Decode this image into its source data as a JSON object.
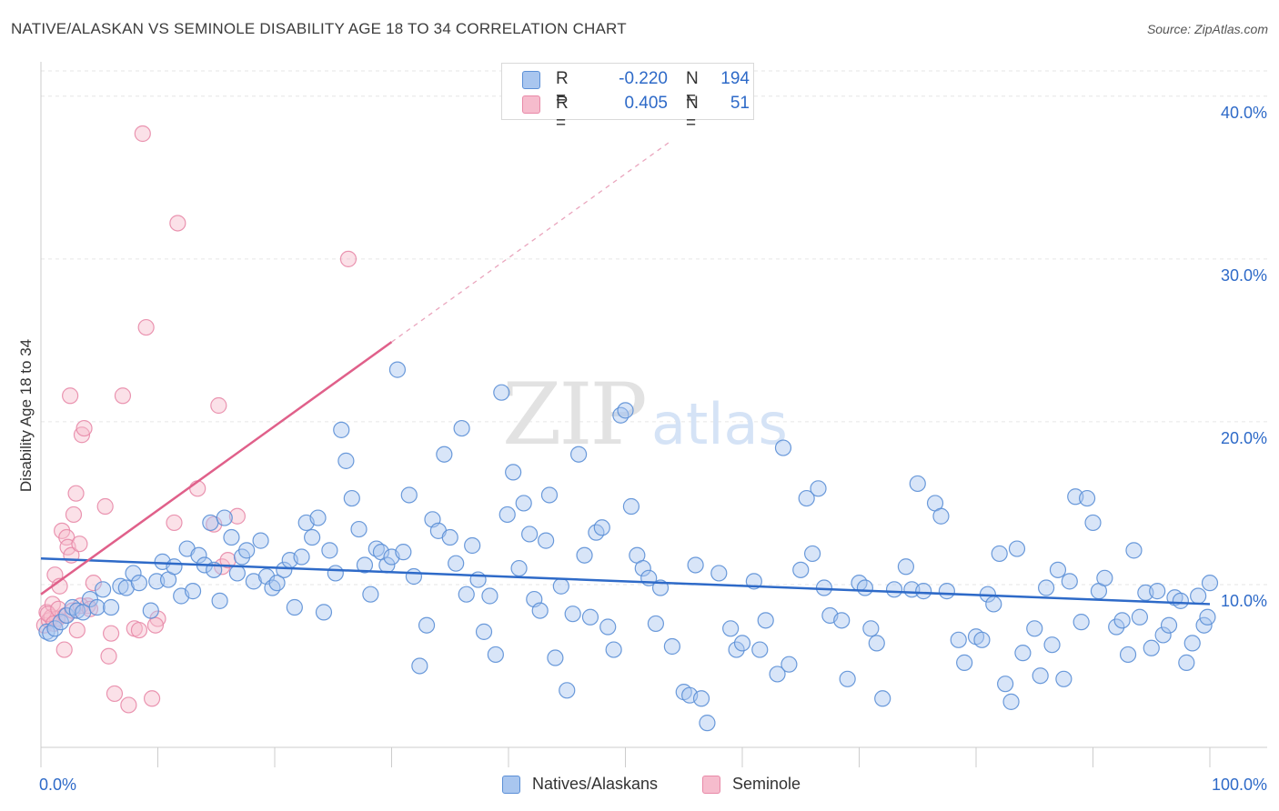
{
  "title": "NATIVE/ALASKAN VS SEMINOLE DISABILITY AGE 18 TO 34 CORRELATION CHART",
  "source": "Source: ZipAtlas.com",
  "watermark": {
    "zip": "ZIP",
    "atlas": "atlas"
  },
  "colors": {
    "blue_fill": "#a9c6ef",
    "blue_stroke": "#5b8fd6",
    "blue_line": "#2e6ac8",
    "pink_fill": "#f6bccd",
    "pink_stroke": "#e889a8",
    "pink_line": "#e0608a",
    "tick_text": "#2e6ac8",
    "grid": "#e6e6e6"
  },
  "legend": {
    "rows": [
      {
        "r_label": "R =",
        "r_value": "-0.220",
        "n_label": "N =",
        "n_value": "194",
        "color": "#a9c6ef",
        "border": "#5b8fd6"
      },
      {
        "r_label": "R =",
        "r_value": "0.405",
        "n_label": "N =",
        "n_value": "51",
        "color": "#f6bccd",
        "border": "#e889a8"
      }
    ]
  },
  "bottom_legend": [
    {
      "label": "Natives/Alaskans",
      "color": "#a9c6ef",
      "border": "#5b8fd6"
    },
    {
      "label": "Seminole",
      "color": "#f6bccd",
      "border": "#e889a8"
    }
  ],
  "chart_data": {
    "type": "scatter",
    "title": "NATIVE/ALASKAN VS SEMINOLE DISABILITY AGE 18 TO 34 CORRELATION CHART",
    "xlabel": "",
    "ylabel": "Disability Age 18 to 34",
    "xlim": [
      0,
      100
    ],
    "ylim": [
      0,
      42
    ],
    "x_tick_labels": [
      "0.0%",
      "100.0%"
    ],
    "y_ticks": [
      10,
      20,
      30,
      40
    ],
    "y_tick_labels": [
      "10.0%",
      "20.0%",
      "30.0%",
      "40.0%"
    ],
    "grid": "horizontal dashed",
    "legend_position": "top-center",
    "series": [
      {
        "name": "Natives/Alaskans",
        "r": -0.22,
        "n": 194,
        "trend": {
          "x": [
            0,
            100
          ],
          "y": [
            11.6,
            8.8
          ]
        },
        "points": [
          [
            0.5,
            7.1
          ],
          [
            0.8,
            7.0
          ],
          [
            1.2,
            7.3
          ],
          [
            1.7,
            7.7
          ],
          [
            2.2,
            8.1
          ],
          [
            2.7,
            8.6
          ],
          [
            3.1,
            8.4
          ],
          [
            3.6,
            8.3
          ],
          [
            4.2,
            9.1
          ],
          [
            4.8,
            8.6
          ],
          [
            5.3,
            9.7
          ],
          [
            6.0,
            8.6
          ],
          [
            6.8,
            9.9
          ],
          [
            7.3,
            9.8
          ],
          [
            7.9,
            10.7
          ],
          [
            8.4,
            10.1
          ],
          [
            9.4,
            8.4
          ],
          [
            9.9,
            10.2
          ],
          [
            10.4,
            11.4
          ],
          [
            10.9,
            10.3
          ],
          [
            11.4,
            11.1
          ],
          [
            12.0,
            9.3
          ],
          [
            12.5,
            12.2
          ],
          [
            13.0,
            9.6
          ],
          [
            13.5,
            11.8
          ],
          [
            14.0,
            11.2
          ],
          [
            14.5,
            13.8
          ],
          [
            14.8,
            10.9
          ],
          [
            15.3,
            9.0
          ],
          [
            15.7,
            14.1
          ],
          [
            16.3,
            12.9
          ],
          [
            16.8,
            10.7
          ],
          [
            17.2,
            11.7
          ],
          [
            17.6,
            12.1
          ],
          [
            18.2,
            10.2
          ],
          [
            18.8,
            12.7
          ],
          [
            19.3,
            10.5
          ],
          [
            19.8,
            9.8
          ],
          [
            20.2,
            10.1
          ],
          [
            20.8,
            10.9
          ],
          [
            21.3,
            11.5
          ],
          [
            21.7,
            8.6
          ],
          [
            22.3,
            11.7
          ],
          [
            22.7,
            13.8
          ],
          [
            23.2,
            12.9
          ],
          [
            23.7,
            14.1
          ],
          [
            24.2,
            8.3
          ],
          [
            24.7,
            12.1
          ],
          [
            25.2,
            10.7
          ],
          [
            25.7,
            19.5
          ],
          [
            26.1,
            17.6
          ],
          [
            26.6,
            15.3
          ],
          [
            27.2,
            13.4
          ],
          [
            27.7,
            11.2
          ],
          [
            28.2,
            9.4
          ],
          [
            28.7,
            12.2
          ],
          [
            29.1,
            12.0
          ],
          [
            29.6,
            11.2
          ],
          [
            30.0,
            11.7
          ],
          [
            30.5,
            23.2
          ],
          [
            31.0,
            12.0
          ],
          [
            31.5,
            15.5
          ],
          [
            31.9,
            10.5
          ],
          [
            32.4,
            5.0
          ],
          [
            33.0,
            7.5
          ],
          [
            33.5,
            14.0
          ],
          [
            34.0,
            13.3
          ],
          [
            34.5,
            18.0
          ],
          [
            35.0,
            12.9
          ],
          [
            35.5,
            11.3
          ],
          [
            36.0,
            19.6
          ],
          [
            36.4,
            9.4
          ],
          [
            36.9,
            12.4
          ],
          [
            37.4,
            10.3
          ],
          [
            37.9,
            7.1
          ],
          [
            38.4,
            9.3
          ],
          [
            38.9,
            5.7
          ],
          [
            39.4,
            21.8
          ],
          [
            39.9,
            14.3
          ],
          [
            40.4,
            16.9
          ],
          [
            40.9,
            11.0
          ],
          [
            41.3,
            15.0
          ],
          [
            41.8,
            13.1
          ],
          [
            42.2,
            9.1
          ],
          [
            42.7,
            8.4
          ],
          [
            43.2,
            12.7
          ],
          [
            43.5,
            15.5
          ],
          [
            44.0,
            5.5
          ],
          [
            44.5,
            9.9
          ],
          [
            45.0,
            3.5
          ],
          [
            45.5,
            8.2
          ],
          [
            46.0,
            18.0
          ],
          [
            46.5,
            11.8
          ],
          [
            47.0,
            8.0
          ],
          [
            47.5,
            13.2
          ],
          [
            48.0,
            13.5
          ],
          [
            48.5,
            7.4
          ],
          [
            49.0,
            6.0
          ],
          [
            49.6,
            20.4
          ],
          [
            50.0,
            20.7
          ],
          [
            50.5,
            14.8
          ],
          [
            51.0,
            11.8
          ],
          [
            51.5,
            11.0
          ],
          [
            52.0,
            10.4
          ],
          [
            52.6,
            7.6
          ],
          [
            53.0,
            9.8
          ],
          [
            54.0,
            6.2
          ],
          [
            55.0,
            3.4
          ],
          [
            55.5,
            3.2
          ],
          [
            56.0,
            11.2
          ],
          [
            56.5,
            3.0
          ],
          [
            57.0,
            1.5
          ],
          [
            58.0,
            10.7
          ],
          [
            59.0,
            7.3
          ],
          [
            59.5,
            6.0
          ],
          [
            60.0,
            6.4
          ],
          [
            61.0,
            10.2
          ],
          [
            61.5,
            6.0
          ],
          [
            62.0,
            7.8
          ],
          [
            63.0,
            4.5
          ],
          [
            63.5,
            18.4
          ],
          [
            64.0,
            5.1
          ],
          [
            65.0,
            10.9
          ],
          [
            65.5,
            15.3
          ],
          [
            66.0,
            11.9
          ],
          [
            66.5,
            15.9
          ],
          [
            67.0,
            9.8
          ],
          [
            67.5,
            8.1
          ],
          [
            68.5,
            7.8
          ],
          [
            69.0,
            4.2
          ],
          [
            70.0,
            10.1
          ],
          [
            70.5,
            9.8
          ],
          [
            71.0,
            7.3
          ],
          [
            71.5,
            6.4
          ],
          [
            72.0,
            3.0
          ],
          [
            73.0,
            9.7
          ],
          [
            74.0,
            11.1
          ],
          [
            74.5,
            9.7
          ],
          [
            75.0,
            16.2
          ],
          [
            75.5,
            9.6
          ],
          [
            76.5,
            15.0
          ],
          [
            77.0,
            14.2
          ],
          [
            77.5,
            9.6
          ],
          [
            78.5,
            6.6
          ],
          [
            79.0,
            5.2
          ],
          [
            80.0,
            6.8
          ],
          [
            80.5,
            6.6
          ],
          [
            81.0,
            9.4
          ],
          [
            81.5,
            8.8
          ],
          [
            82.0,
            11.9
          ],
          [
            82.5,
            3.9
          ],
          [
            83.0,
            2.8
          ],
          [
            83.5,
            12.2
          ],
          [
            84.0,
            5.8
          ],
          [
            85.0,
            7.3
          ],
          [
            85.5,
            4.4
          ],
          [
            86.0,
            9.8
          ],
          [
            86.5,
            6.3
          ],
          [
            87.0,
            10.9
          ],
          [
            87.5,
            4.2
          ],
          [
            88.0,
            10.2
          ],
          [
            88.5,
            15.4
          ],
          [
            89.0,
            7.7
          ],
          [
            89.5,
            15.3
          ],
          [
            90.0,
            13.8
          ],
          [
            90.5,
            9.6
          ],
          [
            91.0,
            10.4
          ],
          [
            92.0,
            7.4
          ],
          [
            92.5,
            7.8
          ],
          [
            93.0,
            5.7
          ],
          [
            93.5,
            12.1
          ],
          [
            94.0,
            8.0
          ],
          [
            94.5,
            9.5
          ],
          [
            95.0,
            6.1
          ],
          [
            95.5,
            9.6
          ],
          [
            96.0,
            6.9
          ],
          [
            96.5,
            7.5
          ],
          [
            97.0,
            9.2
          ],
          [
            97.5,
            9.0
          ],
          [
            98.0,
            5.2
          ],
          [
            98.5,
            6.4
          ],
          [
            99.0,
            9.3
          ],
          [
            99.5,
            7.5
          ],
          [
            99.8,
            8.0
          ],
          [
            100.0,
            10.1
          ]
        ]
      },
      {
        "name": "Seminole",
        "r": 0.405,
        "n": 51,
        "trend": {
          "x": [
            0,
            30
          ],
          "y": [
            9.4,
            24.9
          ]
        },
        "trend_extension": {
          "x": [
            30,
            54
          ],
          "y": [
            24.9,
            37.3
          ]
        },
        "points": [
          [
            0.3,
            7.5
          ],
          [
            0.5,
            8.3
          ],
          [
            0.7,
            7.8
          ],
          [
            0.9,
            8.0
          ],
          [
            1.0,
            8.8
          ],
          [
            1.2,
            10.6
          ],
          [
            1.4,
            7.9
          ],
          [
            1.6,
            9.9
          ],
          [
            1.8,
            13.3
          ],
          [
            2.0,
            6.0
          ],
          [
            2.2,
            12.9
          ],
          [
            2.3,
            12.3
          ],
          [
            2.5,
            21.6
          ],
          [
            2.6,
            11.8
          ],
          [
            2.8,
            14.3
          ],
          [
            3.0,
            15.6
          ],
          [
            3.1,
            7.2
          ],
          [
            3.3,
            12.5
          ],
          [
            3.5,
            19.2
          ],
          [
            3.7,
            19.6
          ],
          [
            4.0,
            8.7
          ],
          [
            4.5,
            10.1
          ],
          [
            5.5,
            14.8
          ],
          [
            5.8,
            5.6
          ],
          [
            6.3,
            3.3
          ],
          [
            7.0,
            21.6
          ],
          [
            7.5,
            2.6
          ],
          [
            8.0,
            7.3
          ],
          [
            8.4,
            7.2
          ],
          [
            8.7,
            37.7
          ],
          [
            9.0,
            25.8
          ],
          [
            9.5,
            3.0
          ],
          [
            10.0,
            7.9
          ],
          [
            11.4,
            13.8
          ],
          [
            11.7,
            32.2
          ],
          [
            13.4,
            15.9
          ],
          [
            14.8,
            13.7
          ],
          [
            15.2,
            21.0
          ],
          [
            15.5,
            11.1
          ],
          [
            16.0,
            11.5
          ],
          [
            16.8,
            14.2
          ],
          [
            26.3,
            30.0
          ],
          [
            0.6,
            8.2
          ],
          [
            1.1,
            7.6
          ],
          [
            1.5,
            8.5
          ],
          [
            2.1,
            8.1
          ],
          [
            2.7,
            8.4
          ],
          [
            3.4,
            8.7
          ],
          [
            4.2,
            8.5
          ],
          [
            6.0,
            7.0
          ],
          [
            9.8,
            7.5
          ]
        ]
      }
    ]
  }
}
